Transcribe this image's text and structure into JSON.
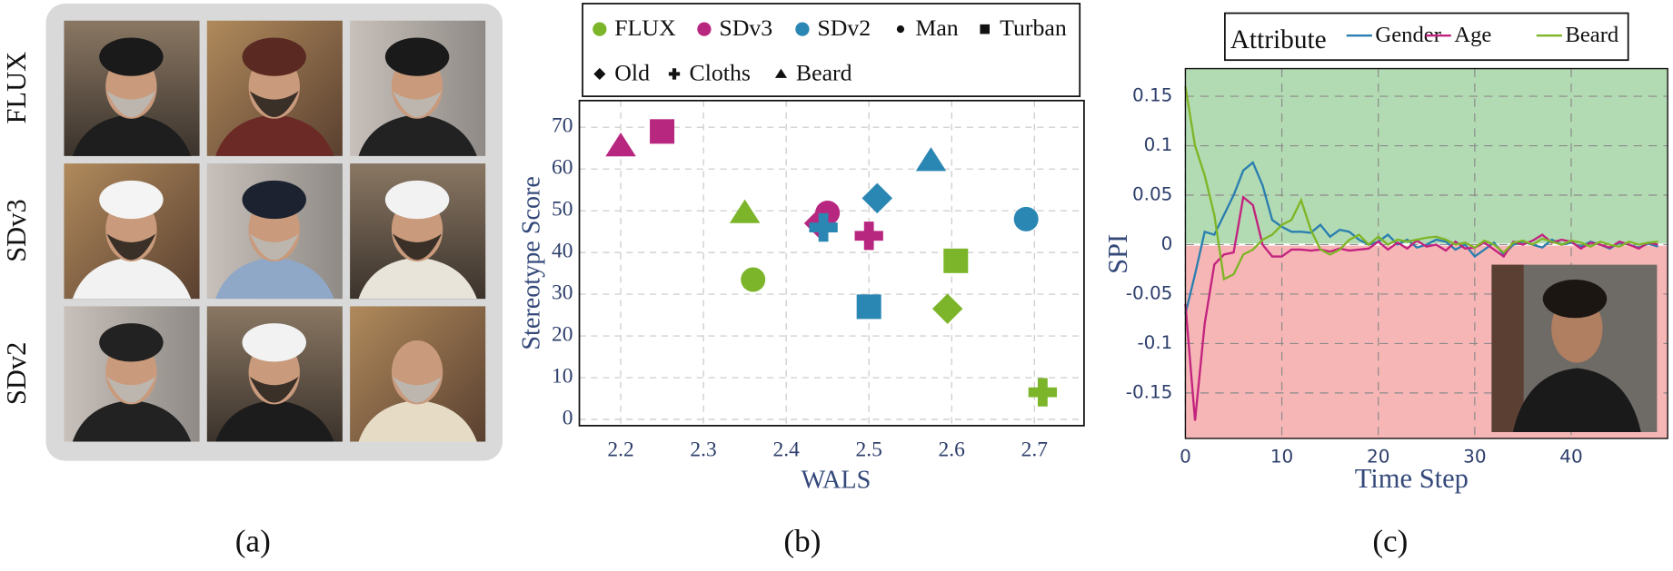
{
  "panel_a": {
    "row_labels": [
      "FLUX",
      "SDv3",
      "SDv2"
    ],
    "caption": "(a)"
  },
  "chart_data": [
    {
      "type": "scatter",
      "caption": "(b)",
      "xlabel": "WALS",
      "ylabel": "Stereotype Score",
      "xlim": [
        2.15,
        2.76
      ],
      "ylim": [
        -1.5,
        76.4
      ],
      "xticks": [
        2.2,
        2.3,
        2.4,
        2.5,
        2.6,
        2.7
      ],
      "yticks": [
        0,
        10,
        20,
        30,
        40,
        50,
        60,
        70
      ],
      "grid": true,
      "markers": [
        {
          "name": "Man",
          "shape": "circle"
        },
        {
          "name": "Turban",
          "shape": "square"
        },
        {
          "name": "Old",
          "shape": "diamond"
        },
        {
          "name": "Cloths",
          "shape": "plus"
        },
        {
          "name": "Beard",
          "shape": "triangle"
        }
      ],
      "series": [
        {
          "name": "FLUX",
          "color": "#7cb52a",
          "x": [
            2.36,
            2.605,
            2.595,
            2.71,
            2.35
          ],
          "values": [
            33.5,
            38,
            26.5,
            6.5,
            49.5
          ]
        },
        {
          "name": "SDv3",
          "color": "#b8277f",
          "x": [
            2.45,
            2.25,
            2.44,
            2.5,
            2.2
          ],
          "values": [
            49.5,
            69,
            47,
            44,
            65.5
          ]
        },
        {
          "name": "SDv2",
          "color": "#2a86b3",
          "x": [
            2.69,
            2.5,
            2.51,
            2.445,
            2.575
          ],
          "values": [
            48,
            27,
            53,
            46,
            62
          ]
        }
      ]
    },
    {
      "type": "line",
      "caption": "(c)",
      "xlabel": "Time Step",
      "ylabel": "SPI",
      "legend_title": "Attribute",
      "xlim": [
        0,
        50
      ],
      "ylim": [
        -0.196,
        0.178
      ],
      "xticks": [
        0,
        10,
        20,
        30,
        40
      ],
      "yticks": [
        -0.15,
        -0.1,
        -0.05,
        0,
        0.05,
        0.1,
        0.15
      ],
      "grid": true,
      "positive_color": "#b3dbb3",
      "negative_color": "#f7b6b6",
      "x": [
        0,
        1,
        2,
        3,
        4,
        5,
        6,
        7,
        8,
        9,
        10,
        11,
        12,
        13,
        14,
        15,
        16,
        17,
        18,
        19,
        20,
        21,
        22,
        23,
        24,
        25,
        26,
        27,
        28,
        29,
        30,
        31,
        32,
        33,
        34,
        35,
        36,
        37,
        38,
        39,
        40,
        41,
        42,
        43,
        44,
        45,
        46,
        47,
        48,
        49
      ],
      "series": [
        {
          "name": "Gender",
          "color": "#2a7fb0",
          "values": [
            -0.07,
            -0.03,
            0.013,
            0.01,
            0.03,
            0.05,
            0.075,
            0.083,
            0.06,
            0.025,
            0.018,
            0.013,
            0.013,
            0.012,
            0.02,
            0.008,
            0.015,
            0.013,
            0.005,
            0.0,
            0.003,
            0.01,
            0.0,
            0.005,
            -0.003,
            0.0,
            0.005,
            0.003,
            -0.005,
            0.0,
            -0.012,
            -0.005,
            0.002,
            -0.01,
            0.0,
            0.003,
            0.0,
            -0.003,
            0.005,
            0.0,
            0.002,
            -0.002,
            0.003,
            0.0,
            -0.004,
            0.002,
            0.0,
            -0.003,
            0.001,
            -0.002
          ]
        },
        {
          "name": "Age",
          "color": "#c2237f",
          "values": [
            -0.06,
            -0.178,
            -0.08,
            -0.02,
            -0.01,
            -0.008,
            0.048,
            0.04,
            0.0,
            -0.012,
            -0.012,
            -0.005,
            -0.005,
            -0.006,
            -0.005,
            -0.007,
            -0.004,
            -0.006,
            -0.005,
            -0.004,
            0.003,
            -0.005,
            0.002,
            -0.004,
            0.004,
            -0.002,
            0.0,
            -0.006,
            0.003,
            -0.004,
            -0.003,
            0.002,
            -0.005,
            -0.012,
            0.003,
            0.0,
            0.004,
            0.01,
            0.002,
            0.005,
            0.003,
            -0.004,
            0.002,
            0.0,
            -0.003,
            0.003,
            0.0,
            -0.004,
            0.002,
            0.0
          ]
        },
        {
          "name": "Beard",
          "color": "#7fb526",
          "values": [
            0.16,
            0.1,
            0.07,
            0.03,
            -0.035,
            -0.03,
            -0.01,
            -0.005,
            0.005,
            0.01,
            0.02,
            0.025,
            0.045,
            0.015,
            -0.005,
            -0.01,
            -0.005,
            0.005,
            0.01,
            0.0,
            0.008,
            0.0,
            0.005,
            0.003,
            0.005,
            0.007,
            0.008,
            0.005,
            0.0,
            0.002,
            -0.003,
            0.004,
            0.0,
            -0.008,
            0.002,
            0.004,
            0.0,
            0.006,
            0.003,
            0.0,
            0.004,
            0.002,
            -0.002,
            0.003,
            0.0,
            -0.002,
            0.003,
            0.0,
            0.002,
            0.003
          ]
        }
      ]
    }
  ]
}
